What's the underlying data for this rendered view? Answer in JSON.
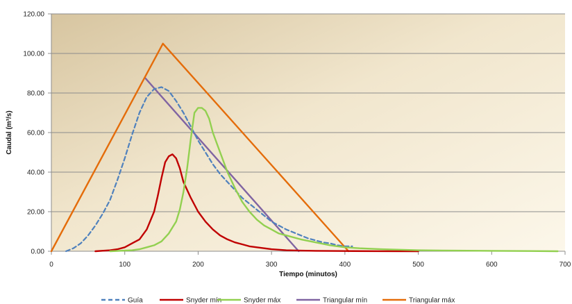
{
  "chart_data": {
    "type": "line",
    "title": "",
    "xlabel": "Tiempo (minutos)",
    "ylabel": "Caudal (m³/s)",
    "xlim": [
      0,
      700
    ],
    "ylim": [
      0,
      120
    ],
    "xticks": [
      0,
      100,
      200,
      300,
      400,
      500,
      600,
      700
    ],
    "xtick_labels": [
      "0",
      "100",
      "200",
      "300",
      "400",
      "500",
      "600",
      "700"
    ],
    "yticks": [
      0,
      20,
      40,
      60,
      80,
      100,
      120
    ],
    "ytick_labels": [
      "0.00",
      "20.00",
      "40.00",
      "60.00",
      "80.00",
      "100.00",
      "120.00"
    ],
    "grid": "horizontal",
    "legend_position": "bottom",
    "colors": {
      "guia": "#4f81bd",
      "snyder_min": "#c00000",
      "snyder_max": "#92d050",
      "triangular_min": "#8064a2",
      "triangular_max": "#e46c0a",
      "background_gradient_start": "#d7c5a0",
      "background_gradient_end": "#fbf5e6",
      "gridline": "#8c8c8c"
    },
    "series": [
      {
        "name": "Guía",
        "style": "dashed",
        "color": "#4f81bd",
        "x": [
          20,
          30,
          40,
          50,
          60,
          70,
          80,
          90,
          100,
          110,
          120,
          130,
          140,
          150,
          160,
          170,
          180,
          190,
          200,
          210,
          220,
          230,
          240,
          250,
          260,
          270,
          280,
          290,
          300,
          310,
          320,
          330,
          340,
          350,
          360,
          370,
          380,
          390,
          400,
          410
        ],
        "y": [
          0,
          1.5,
          4,
          8,
          13,
          19,
          26,
          36,
          47,
          59,
          70,
          78,
          82,
          83,
          81,
          76,
          70,
          63,
          56,
          50,
          44,
          39,
          35,
          31,
          27,
          24,
          21,
          18,
          15,
          13,
          11,
          9.5,
          8,
          6.5,
          5.5,
          4.5,
          4,
          3,
          2.5,
          2.5
        ]
      },
      {
        "name": "Snyder mín",
        "style": "solid",
        "color": "#c00000",
        "x": [
          60,
          80,
          90,
          100,
          110,
          120,
          130,
          140,
          145,
          150,
          155,
          160,
          165,
          170,
          175,
          180,
          190,
          200,
          210,
          220,
          230,
          240,
          250,
          260,
          270,
          280,
          290,
          300,
          320,
          340,
          360,
          400,
          450,
          500
        ],
        "y": [
          0,
          0.5,
          1,
          2,
          4,
          6,
          11,
          20,
          28,
          37,
          45,
          48,
          49,
          47,
          42,
          35,
          27,
          20,
          15,
          11,
          8,
          6,
          4.5,
          3.5,
          2.5,
          2,
          1.5,
          1,
          0.5,
          0.3,
          0.2,
          0.1,
          0.05,
          0
        ]
      },
      {
        "name": "Snyder máx",
        "style": "solid",
        "color": "#92d050",
        "x": [
          80,
          110,
          120,
          130,
          140,
          150,
          160,
          170,
          175,
          180,
          185,
          190,
          195,
          200,
          205,
          210,
          215,
          220,
          230,
          240,
          250,
          260,
          270,
          280,
          290,
          300,
          310,
          320,
          340,
          360,
          380,
          400,
          420,
          450,
          500,
          550,
          600,
          650,
          690
        ],
        "y": [
          0,
          0.5,
          1,
          2,
          3,
          5,
          9,
          15,
          21,
          30,
          42,
          57,
          70,
          72.5,
          72.5,
          71,
          67,
          60,
          50,
          40,
          32,
          25,
          20,
          16,
          13,
          11,
          9,
          8,
          6,
          4.5,
          3,
          2,
          1.5,
          1,
          0.5,
          0.3,
          0.2,
          0.1,
          0
        ]
      },
      {
        "name": "Triangular mín",
        "style": "solid",
        "color": "#8064a2",
        "x": [
          128,
          337
        ],
        "y": [
          87.5,
          0
        ]
      },
      {
        "name": "Triangular máx",
        "style": "solid",
        "color": "#e46c0a",
        "x": [
          0,
          152,
          405
        ],
        "y": [
          0,
          105,
          0
        ]
      }
    ]
  }
}
